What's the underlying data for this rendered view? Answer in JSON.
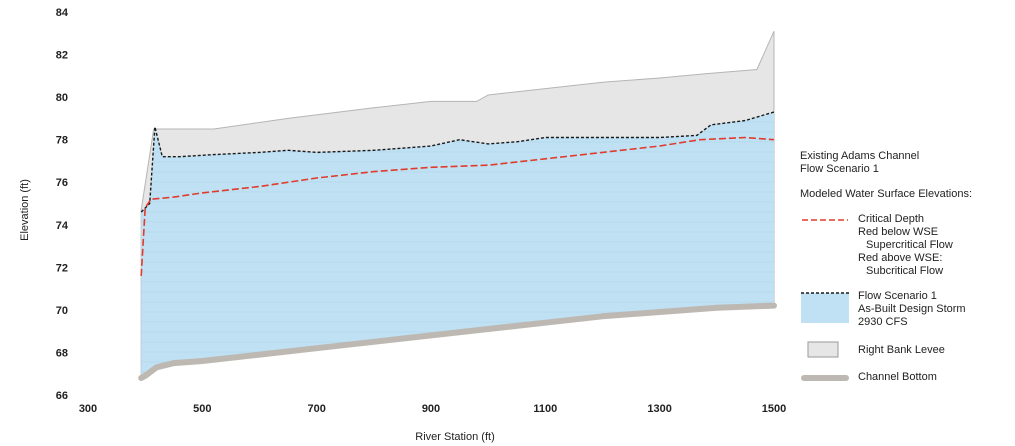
{
  "chart_data": {
    "type": "area",
    "xlabel": "River Station (ft)",
    "ylabel": "Elevation (ft)",
    "xlim": [
      300,
      1500
    ],
    "ylim": [
      66,
      84
    ],
    "xticks": [
      300,
      500,
      700,
      900,
      1100,
      1300,
      1500
    ],
    "yticks": [
      66,
      68,
      70,
      72,
      74,
      76,
      78,
      80,
      82,
      84
    ],
    "grid": false,
    "legend_position": "right",
    "series": [
      {
        "name": "Right Bank Levee",
        "color": "#e6e6e6",
        "x": [
          393,
          415,
          420,
          430,
          460,
          520,
          650,
          800,
          900,
          980,
          1000,
          1100,
          1200,
          1300,
          1380,
          1470,
          1500
        ],
        "values": [
          74.7,
          78.5,
          78.5,
          78.5,
          78.5,
          78.5,
          79.0,
          79.5,
          79.8,
          79.8,
          80.1,
          80.4,
          80.7,
          80.9,
          81.1,
          81.3,
          83.1
        ]
      },
      {
        "name": "Flow Scenario 1",
        "color": "#bfe1f3",
        "x": [
          393,
          408,
          417,
          430,
          460,
          520,
          600,
          650,
          700,
          800,
          850,
          900,
          950,
          1000,
          1050,
          1100,
          1200,
          1300,
          1365,
          1390,
          1450,
          1500
        ],
        "values": [
          74.6,
          75.0,
          78.6,
          77.2,
          77.2,
          77.3,
          77.4,
          77.5,
          77.4,
          77.5,
          77.6,
          77.7,
          78.0,
          77.8,
          77.9,
          78.1,
          78.1,
          78.1,
          78.2,
          78.7,
          78.9,
          79.3
        ]
      },
      {
        "name": "Critical Depth",
        "color": "#e03b2c",
        "x": [
          393,
          400,
          410,
          450,
          500,
          600,
          700,
          800,
          900,
          1000,
          1100,
          1200,
          1300,
          1370,
          1450,
          1500
        ],
        "values": [
          71.6,
          74.8,
          75.2,
          75.3,
          75.5,
          75.8,
          76.2,
          76.5,
          76.7,
          76.8,
          77.1,
          77.4,
          77.7,
          78.0,
          78.1,
          78.0
        ]
      },
      {
        "name": "Channel Bottom",
        "color": "#bdb9b2",
        "x": [
          393,
          400,
          420,
          450,
          500,
          600,
          700,
          800,
          900,
          1000,
          1100,
          1200,
          1300,
          1400,
          1500
        ],
        "values": [
          66.8,
          66.9,
          67.3,
          67.5,
          67.6,
          67.9,
          68.2,
          68.5,
          68.8,
          69.1,
          69.4,
          69.7,
          69.9,
          70.1,
          70.2
        ]
      }
    ]
  },
  "legend": {
    "title_line1": "Existing Adams Channel",
    "title_line2": "Flow Scenario 1",
    "section_heading": "Modeled Water Surface Elevations:",
    "critical": {
      "line1": "Critical Depth",
      "line2": "Red below WSE",
      "line3": "Supercritical Flow",
      "line4": "Red above WSE:",
      "line5": "Subcritical Flow"
    },
    "flow": {
      "line1": "Flow Scenario 1",
      "line2": "As-Built Design Storm",
      "line3": "2930 CFS"
    },
    "levee": "Right Bank Levee",
    "channel": "Channel Bottom"
  }
}
